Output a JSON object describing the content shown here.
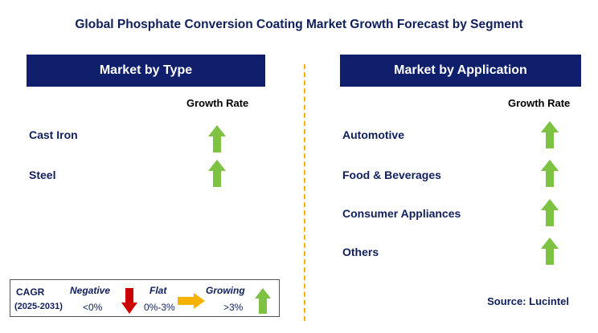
{
  "title": "Global Phosphate Conversion Coating Market Growth Forecast by Segment",
  "colors": {
    "header": "#0f1f6b",
    "up_arrow": "#7dc242",
    "down_arrow": "#cc0000",
    "flat_arrow": "#f5b300",
    "divider": "#f5b300"
  },
  "left_panel": {
    "header": "Market by Type",
    "growth_label": "Growth Rate",
    "items": [
      {
        "label": "Cast Iron",
        "trend": "up-arrow-icon"
      },
      {
        "label": "Steel",
        "trend": "up-arrow-icon"
      }
    ]
  },
  "right_panel": {
    "header": "Market by Application",
    "growth_label": "Growth Rate",
    "items": [
      {
        "label": "Automotive",
        "trend": "up-arrow-icon"
      },
      {
        "label": "Food & Beverages",
        "trend": "up-arrow-icon"
      },
      {
        "label": "Consumer Appliances",
        "trend": "up-arrow-icon"
      },
      {
        "label": "Others",
        "trend": "up-arrow-icon"
      }
    ]
  },
  "legend": {
    "cagr": "CAGR",
    "period": "(2025-2031)",
    "negative": "Negative",
    "negative_range": "<0%",
    "flat": "Flat",
    "flat_range": "0%-3%",
    "growing": "Growing",
    "growing_range": ">3%"
  },
  "source": "Source: Lucintel"
}
